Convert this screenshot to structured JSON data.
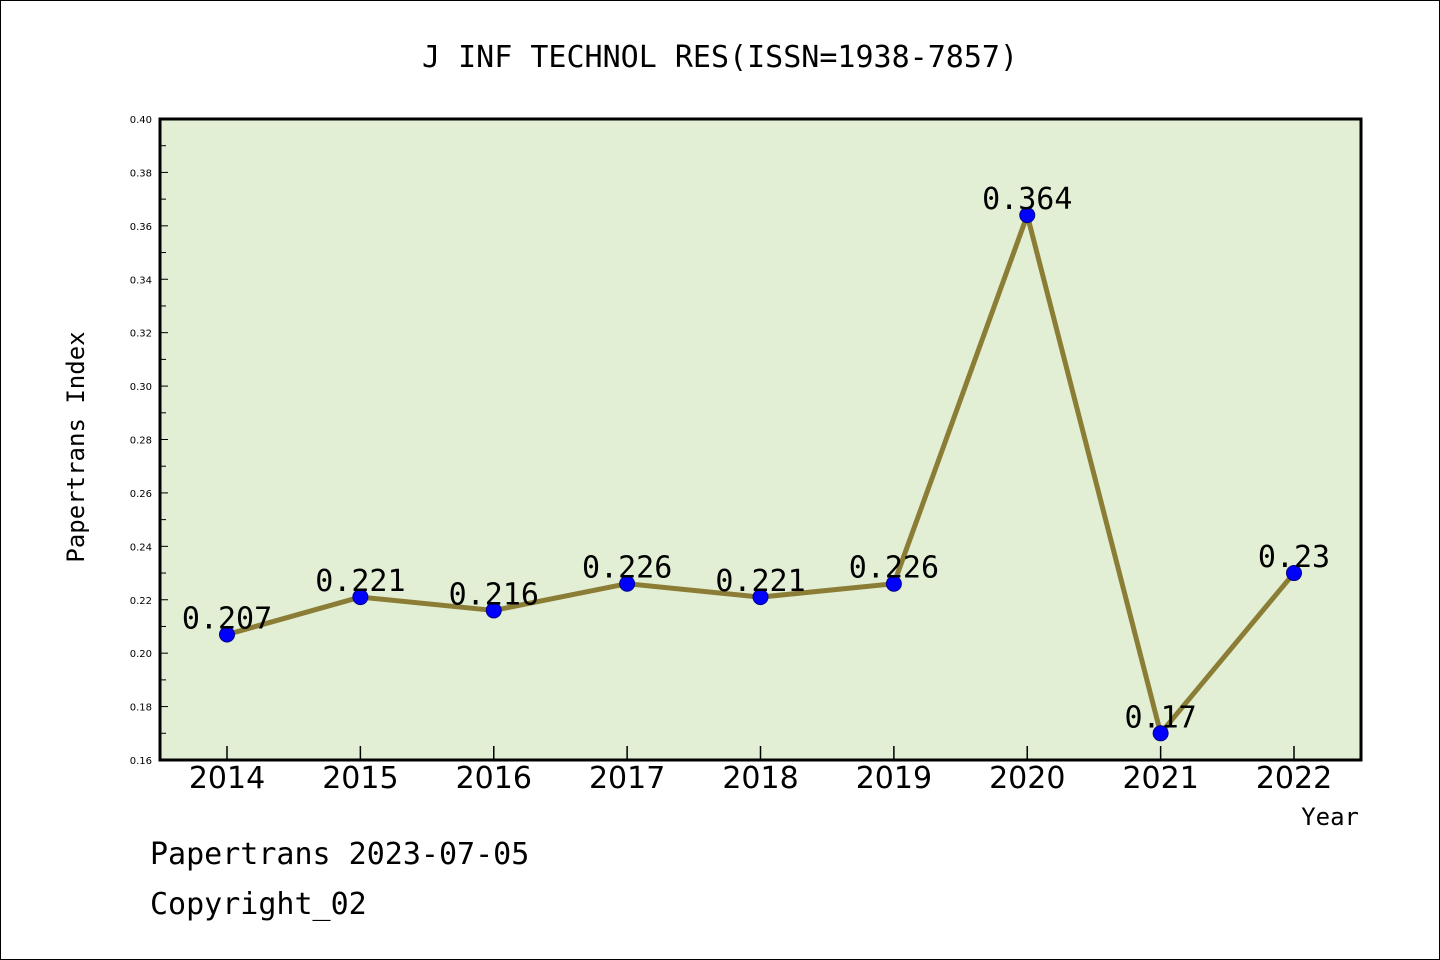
{
  "chart_data": {
    "type": "line",
    "title": "J INF TECHNOL RES(ISSN=1938-7857)",
    "xlabel": "Year",
    "ylabel": "Papertrans Index",
    "categories": [
      "2014",
      "2015",
      "2016",
      "2017",
      "2018",
      "2019",
      "2020",
      "2021",
      "2022"
    ],
    "values": [
      0.207,
      0.221,
      0.216,
      0.226,
      0.221,
      0.226,
      0.364,
      0.17,
      0.23
    ],
    "data_labels": [
      "0.207",
      "0.221",
      "0.216",
      "0.226",
      "0.221",
      "0.226",
      "0.364",
      "0.17",
      "0.23"
    ],
    "ylim": [
      0.16,
      0.4
    ],
    "yticks": [
      "0.16",
      "0.18",
      "0.20",
      "0.22",
      "0.24",
      "0.26",
      "0.28",
      "0.30",
      "0.32",
      "0.34",
      "0.36",
      "0.38",
      "0.40"
    ],
    "grid": false,
    "legend": "none",
    "colors": {
      "plot_background": "#e2efd4",
      "line": "#8b7d35",
      "marker": "#0000ff",
      "axes": "#000000"
    }
  },
  "footer": {
    "line1": "Papertrans 2023-07-05",
    "line2": "Copyright_02"
  }
}
